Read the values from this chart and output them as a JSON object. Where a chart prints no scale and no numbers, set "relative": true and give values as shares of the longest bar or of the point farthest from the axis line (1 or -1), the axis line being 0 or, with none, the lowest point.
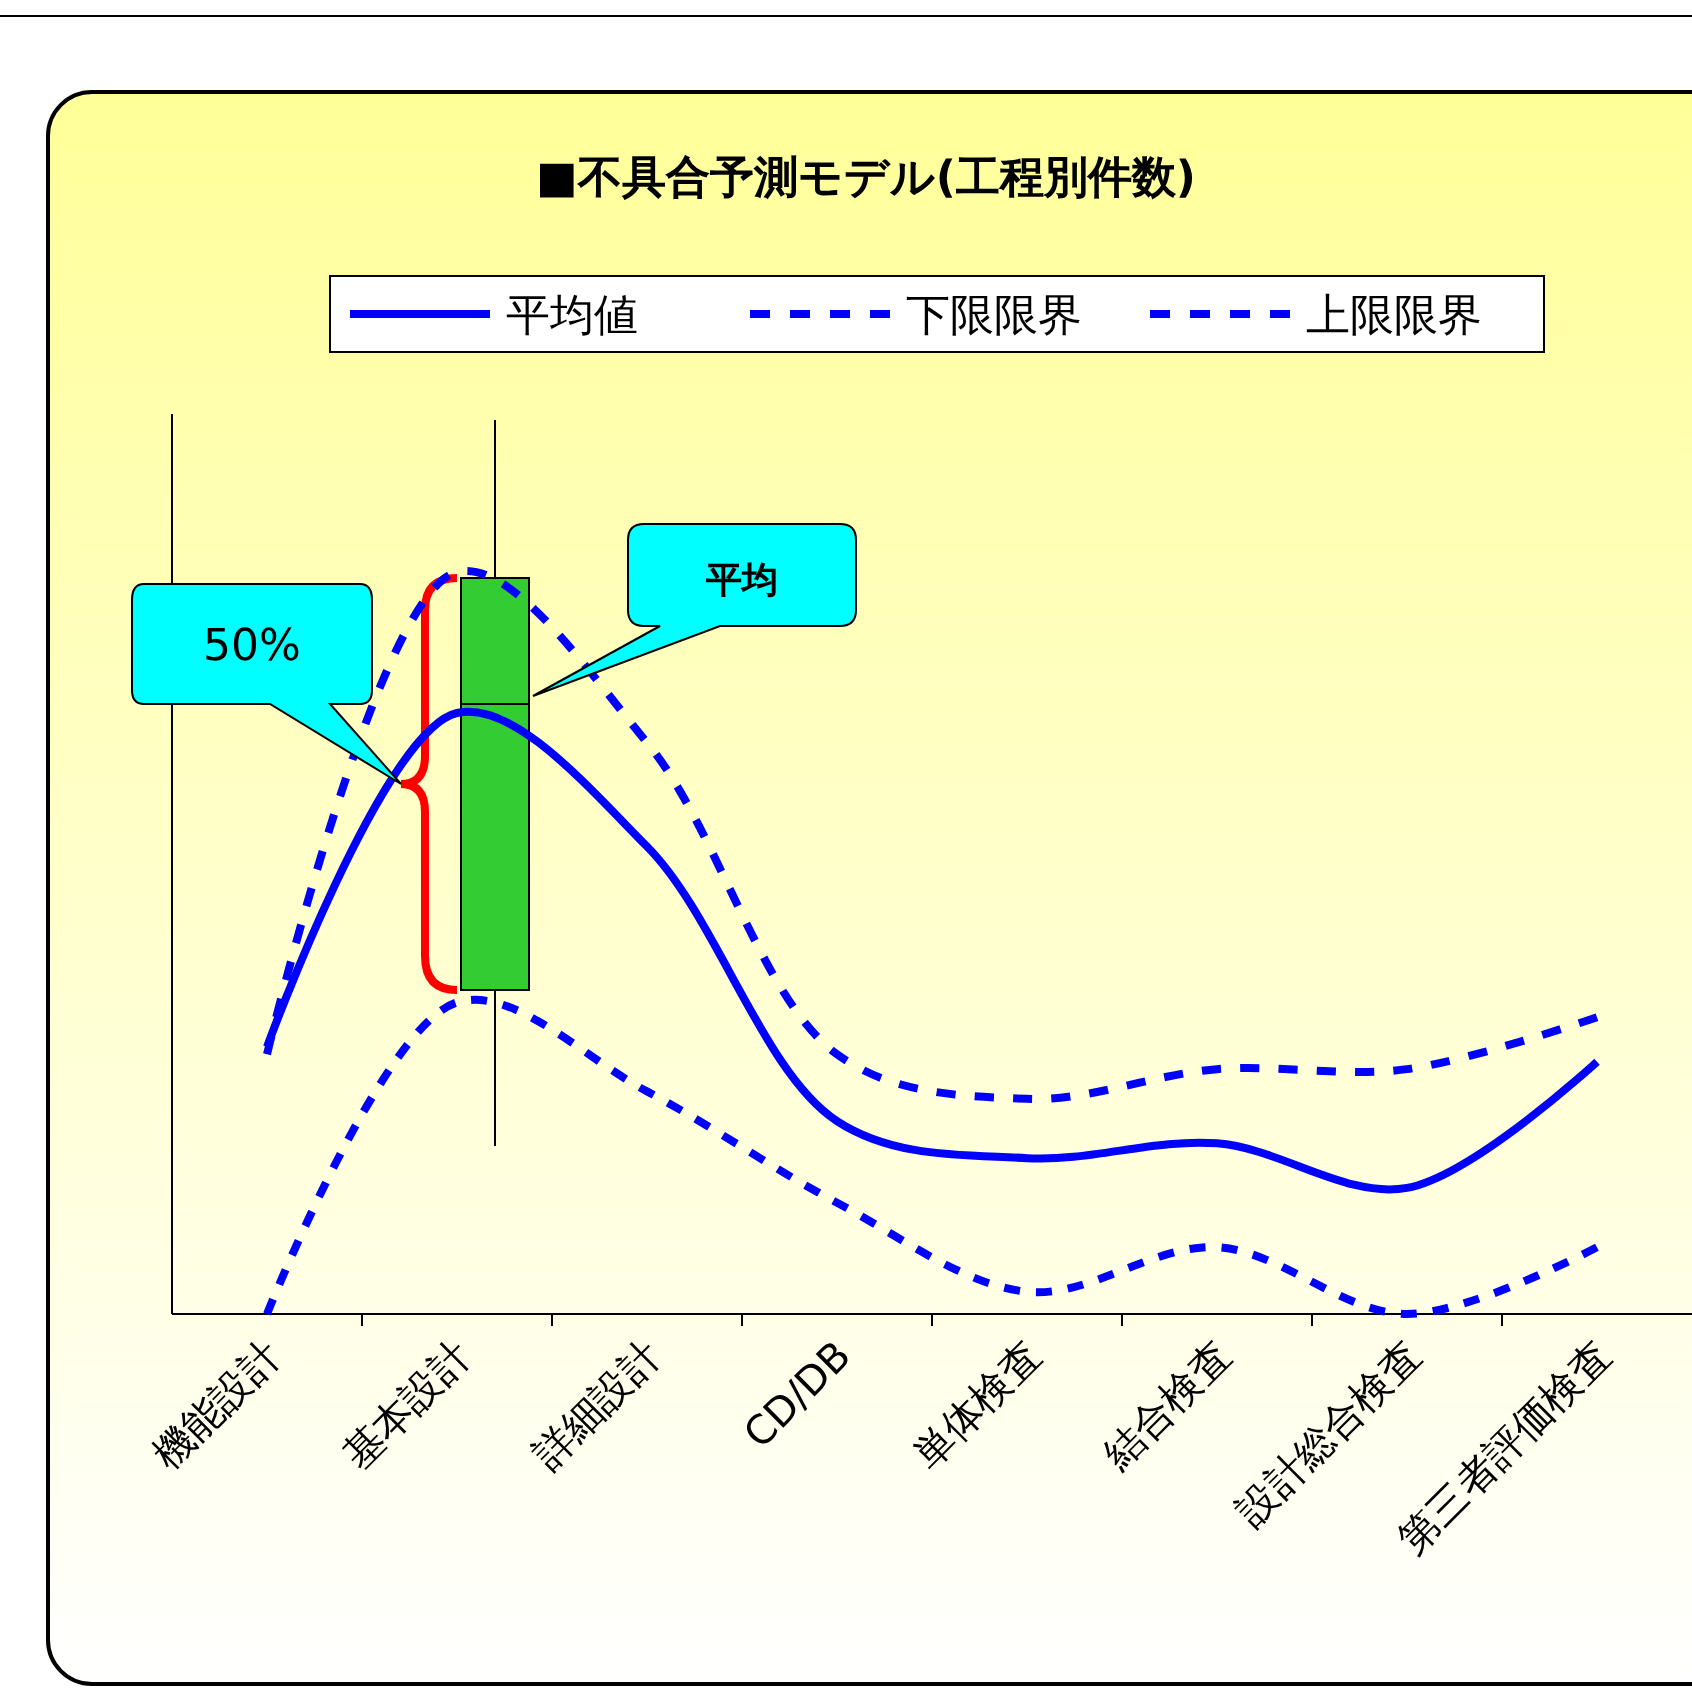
{
  "chart_data": {
    "type": "line",
    "title": "■不具合予測モデル(工程別件数)",
    "relative": true,
    "categories": [
      "機能設計",
      "基本設計",
      "詳細設計",
      "CD/DB",
      "単体検査",
      "結合検査",
      "設計総合検査",
      "第三者評価検査"
    ],
    "series": [
      {
        "name": "平均値",
        "color": "#0000ff",
        "line_style": "solid",
        "values": [
          0.36,
          0.81,
          0.63,
          0.26,
          0.21,
          0.23,
          0.17,
          0.34
        ]
      },
      {
        "name": "下限限界",
        "color": "#0000ff",
        "line_style": "dashed",
        "values": [
          0,
          0.42,
          0.3,
          0.15,
          0.03,
          0.09,
          0,
          0.09
        ]
      },
      {
        "name": "上限限界",
        "color": "#0000ff",
        "line_style": "dashed",
        "values": [
          0.35,
          1,
          0.77,
          0.35,
          0.29,
          0.33,
          0.33,
          0.4
        ]
      }
    ],
    "legend": "top",
    "marker": "none",
    "grid": false,
    "annotations": [
      "50%",
      "平均"
    ]
  }
}
